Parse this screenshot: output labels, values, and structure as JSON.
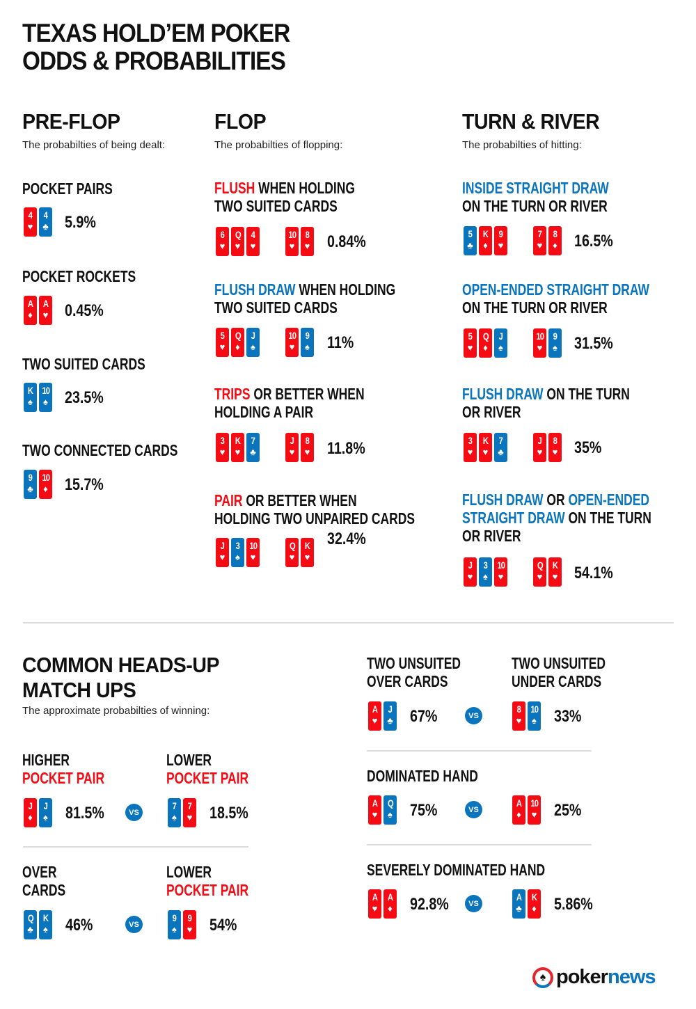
{
  "colors": {
    "red": "#f40b14",
    "blue": "#0a74bd",
    "text": "#111111"
  },
  "title": [
    "TEXAS HOLD’EM POKER",
    "ODDS & PROBABILITIES"
  ],
  "preflop": {
    "title": "PRE-FLOP",
    "subtitle": "The probabilties of being dealt:",
    "items": [
      {
        "title": [
          {
            "text": "POCKET PAIRS",
            "color": "black"
          }
        ],
        "cards": [
          {
            "rank": "4",
            "suit": "hearts"
          },
          {
            "rank": "4",
            "suit": "clubs"
          }
        ],
        "pct": "5.9%"
      },
      {
        "title": [
          {
            "text": "POCKET ROCKETS",
            "color": "black"
          }
        ],
        "cards": [
          {
            "rank": "A",
            "suit": "diamonds"
          },
          {
            "rank": "A",
            "suit": "hearts"
          }
        ],
        "pct": "0.45%"
      },
      {
        "title": [
          {
            "text": "TWO SUITED CARDS",
            "color": "black"
          }
        ],
        "cards": [
          {
            "rank": "K",
            "suit": "spades"
          },
          {
            "rank": "10",
            "suit": "spades"
          }
        ],
        "pct": "23.5%"
      },
      {
        "title": [
          {
            "text": "TWO CONNECTED CARDS",
            "color": "black"
          }
        ],
        "cards": [
          {
            "rank": "9",
            "suit": "clubs"
          },
          {
            "rank": "10",
            "suit": "diamonds"
          }
        ],
        "pct": "15.7%"
      }
    ]
  },
  "flop": {
    "title": "FLOP",
    "subtitle": "The probabilties of flopping:",
    "items": [
      {
        "title": [
          {
            "text": "FLUSH",
            "color": "red"
          },
          {
            "text": " WHEN HOLDING",
            "color": "black"
          },
          {
            "br": true
          },
          {
            "text": "TWO SUITED CARDS",
            "color": "black"
          }
        ],
        "board": [
          {
            "rank": "6",
            "suit": "hearts"
          },
          {
            "rank": "Q",
            "suit": "hearts"
          },
          {
            "rank": "4",
            "suit": "hearts"
          }
        ],
        "hole": [
          {
            "rank": "10",
            "suit": "hearts"
          },
          {
            "rank": "8",
            "suit": "hearts"
          }
        ],
        "pct": "0.84%"
      },
      {
        "title": [
          {
            "text": "FLUSH DRAW",
            "color": "blue"
          },
          {
            "text": " WHEN HOLDING",
            "color": "black"
          },
          {
            "br": true
          },
          {
            "text": "TWO SUITED CARDS",
            "color": "black"
          }
        ],
        "board": [
          {
            "rank": "5",
            "suit": "hearts"
          },
          {
            "rank": "Q",
            "suit": "diamonds"
          },
          {
            "rank": "J",
            "suit": "spades"
          }
        ],
        "hole": [
          {
            "rank": "10",
            "suit": "hearts"
          },
          {
            "rank": "9",
            "suit": "spades"
          }
        ],
        "pct": "11%"
      },
      {
        "title": [
          {
            "text": "TRIPS",
            "color": "red"
          },
          {
            "text": " OR BETTER WHEN",
            "color": "black"
          },
          {
            "br": true
          },
          {
            "text": "HOLDING A PAIR",
            "color": "black"
          }
        ],
        "board": [
          {
            "rank": "3",
            "suit": "hearts"
          },
          {
            "rank": "K",
            "suit": "hearts"
          },
          {
            "rank": "7",
            "suit": "clubs"
          }
        ],
        "hole": [
          {
            "rank": "J",
            "suit": "hearts"
          },
          {
            "rank": "8",
            "suit": "hearts"
          }
        ],
        "pct": "11.8%"
      },
      {
        "title": [
          {
            "text": "PAIR",
            "color": "red"
          },
          {
            "text": " OR BETTER WHEN",
            "color": "black"
          },
          {
            "br": true
          },
          {
            "text": "HOLDING TWO UNPAIRED CARDS",
            "color": "black"
          }
        ],
        "board": [
          {
            "rank": "J",
            "suit": "hearts"
          },
          {
            "rank": "3",
            "suit": "spades"
          },
          {
            "rank": "10",
            "suit": "hearts"
          }
        ],
        "hole": [
          {
            "rank": "Q",
            "suit": "hearts"
          },
          {
            "rank": "K",
            "suit": "hearts"
          }
        ],
        "pct": "32.4%"
      }
    ]
  },
  "turn_river": {
    "title": "TURN & RIVER",
    "subtitle": "The probabilties of hitting:",
    "items": [
      {
        "title": [
          {
            "text": "INSIDE STRAIGHT DRAW",
            "color": "blue"
          },
          {
            "br": true
          },
          {
            "text": "ON THE TURN OR RIVER",
            "color": "black"
          }
        ],
        "board": [
          {
            "rank": "5",
            "suit": "clubs"
          },
          {
            "rank": "K",
            "suit": "diamonds"
          },
          {
            "rank": "9",
            "suit": "hearts"
          }
        ],
        "hole": [
          {
            "rank": "7",
            "suit": "hearts"
          },
          {
            "rank": "8",
            "suit": "diamonds"
          }
        ],
        "pct": "16.5%"
      },
      {
        "title": [
          {
            "text": "OPEN-ENDED STRAIGHT DRAW",
            "color": "blue"
          },
          {
            "br": true
          },
          {
            "text": "ON THE TURN OR RIVER",
            "color": "black"
          }
        ],
        "board": [
          {
            "rank": "5",
            "suit": "hearts"
          },
          {
            "rank": "Q",
            "suit": "diamonds"
          },
          {
            "rank": "J",
            "suit": "spades"
          }
        ],
        "hole": [
          {
            "rank": "10",
            "suit": "hearts"
          },
          {
            "rank": "9",
            "suit": "spades"
          }
        ],
        "pct": "31.5%"
      },
      {
        "title": [
          {
            "text": "FLUSH DRAW",
            "color": "blue"
          },
          {
            "text": " ON THE TURN",
            "color": "black"
          },
          {
            "br": true
          },
          {
            "text": "OR RIVER",
            "color": "black"
          }
        ],
        "board": [
          {
            "rank": "3",
            "suit": "hearts"
          },
          {
            "rank": "K",
            "suit": "hearts"
          },
          {
            "rank": "7",
            "suit": "clubs"
          }
        ],
        "hole": [
          {
            "rank": "J",
            "suit": "hearts"
          },
          {
            "rank": "8",
            "suit": "hearts"
          }
        ],
        "pct": "35%"
      },
      {
        "title": [
          {
            "text": "FLUSH DRAW",
            "color": "blue"
          },
          {
            "text": " OR ",
            "color": "black"
          },
          {
            "text": "OPEN-ENDED",
            "color": "blue"
          },
          {
            "br": true
          },
          {
            "text": "STRAIGHT DRAW",
            "color": "blue"
          },
          {
            "text": " ON THE TURN",
            "color": "black"
          },
          {
            "br": true
          },
          {
            "text": "OR RIVER",
            "color": "black"
          }
        ],
        "board": [
          {
            "rank": "J",
            "suit": "hearts"
          },
          {
            "rank": "3",
            "suit": "spades"
          },
          {
            "rank": "10",
            "suit": "hearts"
          }
        ],
        "hole": [
          {
            "rank": "Q",
            "suit": "hearts"
          },
          {
            "rank": "K",
            "suit": "hearts"
          }
        ],
        "pct": "54.1%"
      }
    ]
  },
  "headsup": {
    "title": [
      "COMMON HEADS-UP",
      "MATCH UPS"
    ],
    "subtitle": "The approximate probabilties of winning:",
    "vs_label": "VS",
    "matchups": [
      {
        "left": {
          "title": [
            {
              "text": "HIGHER",
              "color": "black"
            },
            {
              "br": true
            },
            {
              "text": "POCKET PAIR",
              "color": "red"
            }
          ],
          "cards": [
            {
              "rank": "J",
              "suit": "diamonds"
            },
            {
              "rank": "J",
              "suit": "spades"
            }
          ],
          "pct": "81.5%"
        },
        "right": {
          "title": [
            {
              "text": "LOWER",
              "color": "black"
            },
            {
              "br": true
            },
            {
              "text": "POCKET PAIR",
              "color": "red"
            }
          ],
          "cards": [
            {
              "rank": "7",
              "suit": "spades"
            },
            {
              "rank": "7",
              "suit": "hearts"
            }
          ],
          "pct": "18.5%"
        }
      },
      {
        "left": {
          "title": [
            {
              "text": "OVER",
              "color": "black"
            },
            {
              "br": true
            },
            {
              "text": "CARDS",
              "color": "black"
            }
          ],
          "cards": [
            {
              "rank": "Q",
              "suit": "clubs"
            },
            {
              "rank": "K",
              "suit": "spades"
            }
          ],
          "pct": "46%"
        },
        "right": {
          "title": [
            {
              "text": "LOWER",
              "color": "black"
            },
            {
              "br": true
            },
            {
              "text": "POCKET PAIR",
              "color": "red"
            }
          ],
          "cards": [
            {
              "rank": "9",
              "suit": "spades"
            },
            {
              "rank": "9",
              "suit": "hearts"
            }
          ],
          "pct": "54%"
        }
      },
      {
        "left": {
          "title": [
            {
              "text": "TWO UNSUITED",
              "color": "black"
            },
            {
              "br": true
            },
            {
              "text": "OVER CARDS",
              "color": "black"
            }
          ],
          "cards": [
            {
              "rank": "A",
              "suit": "hearts"
            },
            {
              "rank": "J",
              "suit": "clubs"
            }
          ],
          "pct": "67%"
        },
        "right": {
          "title": [
            {
              "text": "TWO UNSUITED",
              "color": "black"
            },
            {
              "br": true
            },
            {
              "text": "UNDER CARDS",
              "color": "black"
            }
          ],
          "cards": [
            {
              "rank": "8",
              "suit": "hearts"
            },
            {
              "rank": "10",
              "suit": "spades"
            }
          ],
          "pct": "33%"
        }
      },
      {
        "title": [
          {
            "text": "DOMINATED HAND",
            "color": "black"
          }
        ],
        "left": {
          "cards": [
            {
              "rank": "A",
              "suit": "hearts"
            },
            {
              "rank": "Q",
              "suit": "spades"
            }
          ],
          "pct": "75%"
        },
        "right": {
          "cards": [
            {
              "rank": "A",
              "suit": "diamonds"
            },
            {
              "rank": "10",
              "suit": "hearts"
            }
          ],
          "pct": "25%"
        }
      },
      {
        "title": [
          {
            "text": "SEVERELY DOMINATED HAND",
            "color": "black"
          }
        ],
        "left": {
          "cards": [
            {
              "rank": "A",
              "suit": "hearts"
            },
            {
              "rank": "A",
              "suit": "diamonds"
            }
          ],
          "pct": "92.8%"
        },
        "right": {
          "cards": [
            {
              "rank": "A",
              "suit": "clubs"
            },
            {
              "rank": "K",
              "suit": "diamonds"
            }
          ],
          "pct": "5.86%"
        }
      }
    ]
  },
  "logo": {
    "part1": "poker",
    "part2": "news"
  }
}
